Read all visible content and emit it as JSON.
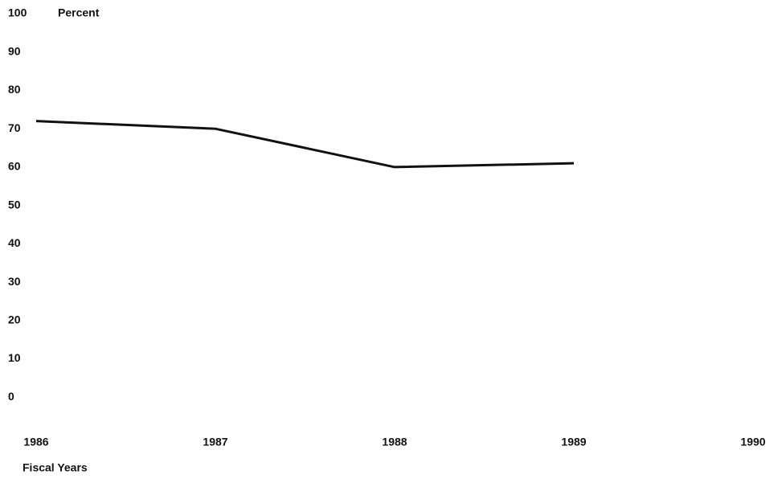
{
  "chart_data": {
    "type": "line",
    "y_label": "Percent",
    "x_label": "Fiscal Years",
    "x": [
      1986,
      1987,
      1988,
      1989
    ],
    "series": [
      {
        "name": null,
        "color": "#111111",
        "values": [
          72,
          70,
          60,
          61
        ]
      }
    ],
    "xlim": [
      1986,
      1990
    ],
    "xticks": [
      1986,
      1987,
      1988,
      1989,
      1990
    ],
    "ylim": [
      -10,
      100
    ],
    "yticks": [
      0,
      10,
      20,
      30,
      40,
      50,
      60,
      70,
      80,
      90,
      100
    ],
    "grid": false
  }
}
